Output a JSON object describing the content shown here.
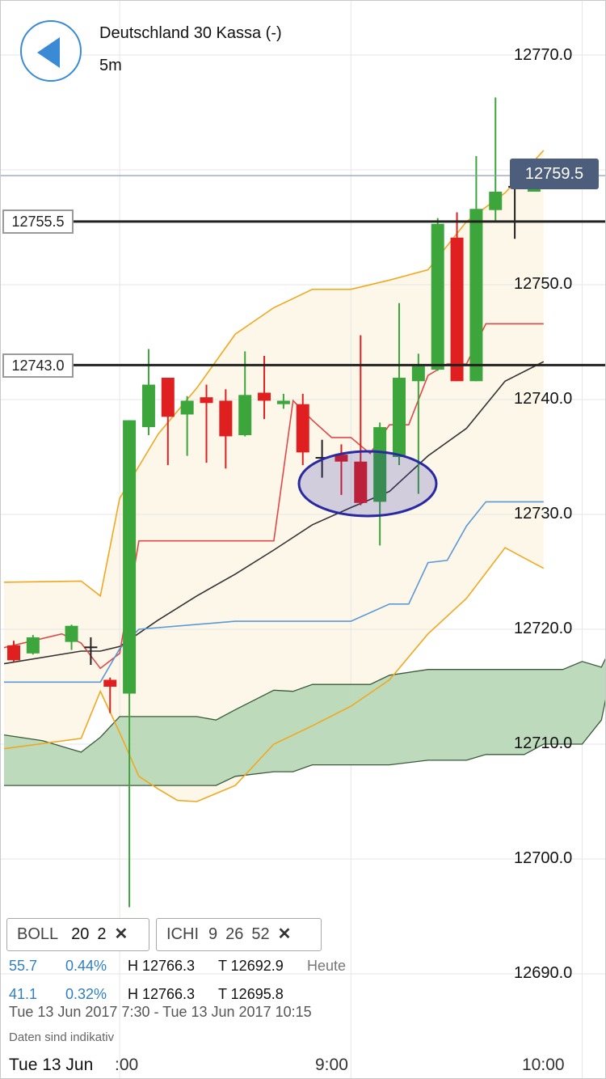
{
  "header": {
    "instrument": "Deutschland 30 Kassa (-)",
    "interval": "5m"
  },
  "current_price": "12759.5",
  "levels": [
    {
      "label": "12755.5",
      "value": 12755.5
    },
    {
      "label": "12743.0",
      "value": 12743.0
    }
  ],
  "indicators": [
    {
      "name": "BOLL",
      "params": [
        "20",
        "2"
      ],
      "close": "✕"
    },
    {
      "name": "ICHI",
      "params": [
        "9",
        "26",
        "52"
      ],
      "close": "✕"
    }
  ],
  "stats": [
    {
      "value": "55.7",
      "percent": "0.44%",
      "high": "H 12766.3",
      "low": "T 12692.9",
      "note": "Heute"
    },
    {
      "value": "41.1",
      "percent": "0.32%",
      "high": "H 12766.3",
      "low": "T 12695.8",
      "note": ""
    }
  ],
  "range": "Tue 13 Jun 2017 7:30 - Tue 13 Jun 2017 10:15",
  "disclaimer": "Daten sind indikativ",
  "date_label": "Tue 13 Jun",
  "colors": {
    "up": "#3ca63c",
    "down": "#e02020",
    "boll": "#f0a820",
    "sma": "#333333",
    "tenkan": "#e04848",
    "kijun": "#5a98d6",
    "cloud": "#b9d9b8",
    "accent": "#4d5e7c",
    "back": "#3a8ad6",
    "ellipse": "#2a2aa0"
  },
  "chart_data": {
    "type": "candlestick",
    "ylim": [
      12684,
      12775
    ],
    "y_ticks": [
      "12770.0",
      "12750.0",
      "12730.0",
      "12720.0",
      "12710.0",
      "12700.0",
      "12690.0"
    ],
    "y_tick_values": [
      12770,
      12750,
      12730,
      12720,
      12710,
      12700,
      12690
    ],
    "y_tick_labels_extra": [
      {
        "label": "12740.0",
        "value": 12740
      }
    ],
    "x_ticks": [
      "8:00",
      "9:00",
      "10:00"
    ],
    "x_tick_values": [
      "08:00",
      "09:00",
      "10:00"
    ],
    "x_tick_display": [
      ":00",
      "9:00",
      "10:00"
    ],
    "time_start": "07:30",
    "bar_minutes": 5,
    "candles": [
      {
        "t": "07:30",
        "o": 12718.6,
        "h": 12719.0,
        "l": 12717.2,
        "c": 12717.3
      },
      {
        "t": "07:35",
        "o": 12717.9,
        "h": 12719.5,
        "l": 12717.8,
        "c": 12719.3
      },
      {
        "t": "07:45",
        "o": 12718.9,
        "h": 12720.4,
        "l": 12718.2,
        "c": 12720.3
      },
      {
        "t": "07:50",
        "o": 12718.5,
        "h": 12719.3,
        "l": 12716.9,
        "c": 12718.4
      },
      {
        "t": "07:55",
        "o": 12715.6,
        "h": 12715.8,
        "l": 12712.7,
        "c": 12715.0
      },
      {
        "t": "08:00",
        "o": 12714.4,
        "h": 12738.2,
        "l": 12695.8,
        "c": 12738.2
      },
      {
        "t": "08:05",
        "o": 12737.6,
        "h": 12744.4,
        "l": 12736.9,
        "c": 12741.3
      },
      {
        "t": "08:10",
        "o": 12741.9,
        "h": 12741.9,
        "l": 12734.3,
        "c": 12738.5
      },
      {
        "t": "08:15",
        "o": 12738.7,
        "h": 12740.3,
        "l": 12735.1,
        "c": 12739.9
      },
      {
        "t": "08:20",
        "o": 12740.2,
        "h": 12741.3,
        "l": 12734.5,
        "c": 12739.7
      },
      {
        "t": "08:25",
        "o": 12739.9,
        "h": 12740.9,
        "l": 12734.0,
        "c": 12736.8
      },
      {
        "t": "08:30",
        "o": 12736.9,
        "h": 12744.2,
        "l": 12736.8,
        "c": 12740.4
      },
      {
        "t": "08:35",
        "o": 12740.6,
        "h": 12743.8,
        "l": 12738.3,
        "c": 12739.9
      },
      {
        "t": "08:40",
        "o": 12739.6,
        "h": 12740.5,
        "l": 12739.2,
        "c": 12739.9
      },
      {
        "t": "08:45",
        "o": 12739.6,
        "h": 12740.5,
        "l": 12734.3,
        "c": 12735.4
      },
      {
        "t": "08:50",
        "o": 12735.0,
        "h": 12736.5,
        "l": 12733.2,
        "c": 12735.0
      },
      {
        "t": "08:55",
        "o": 12735.2,
        "h": 12736.1,
        "l": 12731.7,
        "c": 12734.6
      },
      {
        "t": "09:00",
        "o": 12734.6,
        "h": 12745.6,
        "l": 12730.8,
        "c": 12731.0
      },
      {
        "t": "09:05",
        "o": 12731.1,
        "h": 12738.0,
        "l": 12727.3,
        "c": 12737.6
      },
      {
        "t": "09:10",
        "o": 12735.0,
        "h": 12748.4,
        "l": 12734.3,
        "c": 12741.9
      },
      {
        "t": "09:15",
        "o": 12741.6,
        "h": 12744.0,
        "l": 12731.8,
        "c": 12742.9
      },
      {
        "t": "09:20",
        "o": 12742.6,
        "h": 12755.8,
        "l": 12742.5,
        "c": 12755.3
      },
      {
        "t": "09:25",
        "o": 12754.1,
        "h": 12756.3,
        "l": 12741.6,
        "c": 12741.6
      },
      {
        "t": "09:30",
        "o": 12741.6,
        "h": 12761.2,
        "l": 12741.6,
        "c": 12756.6
      },
      {
        "t": "09:35",
        "o": 12756.5,
        "h": 12766.3,
        "l": 12755.6,
        "c": 12758.1
      },
      {
        "t": "09:40",
        "o": 12758.5,
        "h": 12760.2,
        "l": 12754.0,
        "c": 12758.6
      },
      {
        "t": "09:45",
        "o": 12758.1,
        "h": 12759.7,
        "l": 12758.1,
        "c": 12759.5
      }
    ],
    "series": [
      {
        "name": "BOLL",
        "role": "upper",
        "color": "#f0a820",
        "x": [
          "07:30",
          "07:50",
          "07:55",
          "08:00",
          "08:10",
          "08:20",
          "08:30",
          "08:40",
          "08:50",
          "09:00",
          "09:10",
          "09:20",
          "09:30",
          "09:40",
          "09:50"
        ],
        "y": [
          12724.1,
          12724.2,
          12722.9,
          12731.4,
          12737.0,
          12741.0,
          12745.7,
          12748.0,
          12749.6,
          12749.6,
          12750.4,
          12751.3,
          12755.5,
          12758.0,
          12761.7
        ]
      },
      {
        "name": "BOLL",
        "role": "middle",
        "color": "#333333",
        "x": [
          "07:30",
          "07:50",
          "07:55",
          "08:00",
          "08:10",
          "08:20",
          "08:30",
          "08:40",
          "08:50",
          "09:00",
          "09:10",
          "09:20",
          "09:30",
          "09:40",
          "09:50"
        ],
        "y": [
          12717.0,
          12718.1,
          12718.1,
          12718.5,
          12720.8,
          12722.9,
          12724.8,
          12726.9,
          12729.1,
          12730.6,
          12732.0,
          12735.1,
          12737.5,
          12741.6,
          12743.3
        ]
      },
      {
        "name": "BOLL",
        "role": "lower",
        "color": "#f0a820",
        "x": [
          "07:30",
          "07:50",
          "07:55",
          "08:00",
          "08:05",
          "08:10",
          "08:15",
          "08:20",
          "08:30",
          "08:40",
          "08:50",
          "09:00",
          "09:10",
          "09:20",
          "09:30",
          "09:40",
          "09:50"
        ],
        "y": [
          12709.6,
          12710.5,
          12714.6,
          12711.0,
          12707.2,
          12706.1,
          12705.1,
          12705.0,
          12706.4,
          12710.0,
          12711.6,
          12713.3,
          12715.6,
          12719.6,
          12722.7,
          12727.1,
          12725.3
        ]
      },
      {
        "name": "ICHI",
        "role": "tenkan",
        "color": "#e04848",
        "x": [
          "07:30",
          "07:45",
          "07:50",
          "07:55",
          "08:00",
          "08:05",
          "08:10",
          "08:15",
          "08:20",
          "08:25",
          "08:30",
          "08:35",
          "08:40",
          "08:45",
          "08:50",
          "08:55",
          "09:00",
          "09:05",
          "09:10",
          "09:15",
          "09:20",
          "09:25",
          "09:30",
          "09:35",
          "09:40",
          "09:50"
        ],
        "y": [
          12718.4,
          12719.6,
          12718.8,
          12716.6,
          12717.9,
          12727.7,
          12727.7,
          12727.7,
          12727.7,
          12727.7,
          12727.7,
          12727.7,
          12727.7,
          12739.9,
          12738.2,
          12736.7,
          12736.7,
          12735.3,
          12737.8,
          12737.8,
          12742.1,
          12743.1,
          12743.1,
          12746.6,
          12746.6,
          12746.6
        ]
      },
      {
        "name": "ICHI",
        "role": "kijun",
        "color": "#5a98d6",
        "x": [
          "07:30",
          "07:55",
          "08:00",
          "08:05",
          "08:30",
          "08:40",
          "08:55",
          "09:00",
          "09:10",
          "09:15",
          "09:20",
          "09:25",
          "09:30",
          "09:35",
          "09:40",
          "09:50"
        ],
        "y": [
          12715.4,
          12715.4,
          12718.3,
          12720.0,
          12720.7,
          12720.7,
          12720.7,
          12720.7,
          12722.2,
          12722.2,
          12725.8,
          12726.0,
          12729.0,
          12731.1,
          12731.1,
          12731.1
        ]
      }
    ],
    "cloud": {
      "color": "#b9d9b8",
      "x": [
        "07:30",
        "07:40",
        "07:50",
        "07:55",
        "08:00",
        "08:10",
        "08:20",
        "08:25",
        "08:30",
        "08:40",
        "08:45",
        "08:50",
        "09:00",
        "09:05",
        "09:10",
        "09:20",
        "09:30",
        "09:35",
        "09:40",
        "09:45",
        "09:50",
        "09:55",
        "10:00",
        "10:05",
        "10:10"
      ],
      "span_a": [
        12710.8,
        12710.3,
        12709.3,
        12710.6,
        12712.4,
        12712.4,
        12712.4,
        12712.1,
        12713.0,
        12714.7,
        12714.6,
        12715.2,
        12715.2,
        12715.2,
        12716.0,
        12716.5,
        12716.5,
        12716.5,
        12716.5,
        12716.5,
        12716.5,
        12716.5,
        12717.2,
        12716.7,
        12720.2
      ],
      "span_b": [
        12706.4,
        12706.4,
        12706.4,
        12706.4,
        12706.4,
        12706.4,
        12706.4,
        12706.4,
        12707.2,
        12707.6,
        12707.6,
        12708.2,
        12708.2,
        12708.2,
        12708.2,
        12708.6,
        12708.6,
        12709.1,
        12709.1,
        12709.1,
        12710.0,
        12710.0,
        12710.0,
        12712.1,
        12720.2
      ]
    },
    "xlabel": "",
    "ylabel": ""
  }
}
